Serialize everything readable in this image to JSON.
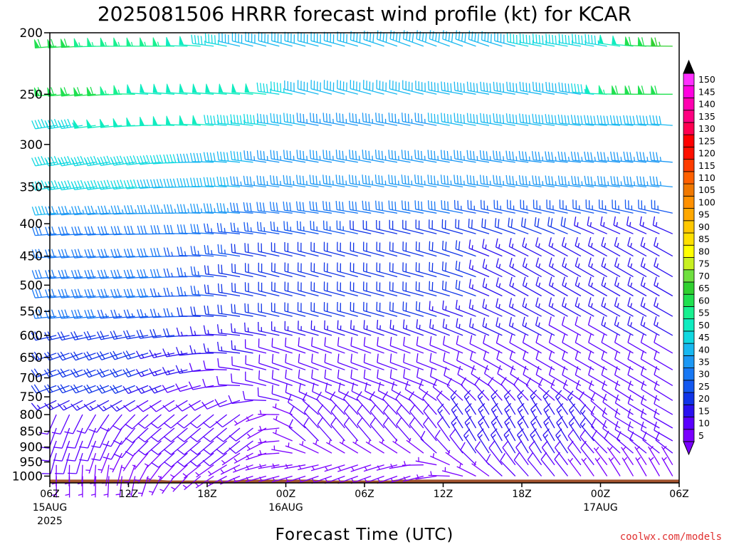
{
  "chart_data": {
    "type": "wind_barb_time_height",
    "title": "2025081506 HRRR forecast wind profile (kt) for KCAR",
    "xlabel": "Forecast Time (UTC)",
    "credit": "coolwx.com/models",
    "y_axis": {
      "label": "",
      "units": "hPa",
      "reversed": true,
      "ticks": [
        200,
        250,
        300,
        350,
        400,
        450,
        500,
        550,
        600,
        650,
        700,
        750,
        800,
        850,
        900,
        950,
        1000
      ]
    },
    "x_axis": {
      "hours_range": [
        0,
        48
      ],
      "ticks": [
        {
          "hour": 0,
          "label": "06Z",
          "date": "15AUG",
          "year": "2025"
        },
        {
          "hour": 6,
          "label": "12Z",
          "date": "",
          "year": ""
        },
        {
          "hour": 12,
          "label": "18Z",
          "date": "",
          "year": ""
        },
        {
          "hour": 18,
          "label": "00Z",
          "date": "16AUG",
          "year": ""
        },
        {
          "hour": 24,
          "label": "06Z",
          "date": "",
          "year": ""
        },
        {
          "hour": 30,
          "label": "12Z",
          "date": "",
          "year": ""
        },
        {
          "hour": 36,
          "label": "18Z",
          "date": "",
          "year": ""
        },
        {
          "hour": 42,
          "label": "00Z",
          "date": "17AUG",
          "year": ""
        },
        {
          "hour": 48,
          "label": "06Z",
          "date": "",
          "year": ""
        }
      ]
    },
    "colorbar": {
      "units": "kt",
      "levels": [
        5,
        10,
        15,
        20,
        25,
        30,
        35,
        40,
        45,
        50,
        55,
        60,
        65,
        70,
        75,
        80,
        85,
        90,
        95,
        100,
        105,
        110,
        115,
        120,
        125,
        130,
        135,
        140,
        145,
        150
      ],
      "colors": [
        "#7a00ff",
        "#5a00ff",
        "#2a10f0",
        "#1034e8",
        "#1458f0",
        "#1878f4",
        "#1c98f4",
        "#18b8f0",
        "#10d8e0",
        "#10ecc0",
        "#18f090",
        "#20e050",
        "#30d030",
        "#70e040",
        "#c8f020",
        "#ffff00",
        "#ffe000",
        "#ffc800",
        "#ffa800",
        "#ff9000",
        "#f07800",
        "#ff6000",
        "#ff3c00",
        "#ff1000",
        "#ff0000",
        "#ff0050",
        "#ff0080",
        "#ff00b0",
        "#ff00e0",
        "#ff30ff"
      ]
    },
    "surface_terrain": {
      "color": "#a0522d",
      "pressure_by_hour": [
        [
          0,
          1013
        ],
        [
          8,
          1013
        ],
        [
          9,
          1016
        ],
        [
          14,
          1016
        ],
        [
          15,
          1013
        ],
        [
          20,
          1013
        ],
        [
          21,
          1016
        ],
        [
          26,
          1016
        ],
        [
          26.5,
          1013
        ],
        [
          48,
          1013
        ]
      ]
    },
    "wind_key_points": [
      {
        "hour": 0,
        "p": 200,
        "speed": 60,
        "dir": 265
      },
      {
        "hour": 6,
        "p": 200,
        "speed": 55,
        "dir": 270
      },
      {
        "hour": 18,
        "p": 200,
        "speed": 40,
        "dir": 285
      },
      {
        "hour": 30,
        "p": 200,
        "speed": 40,
        "dir": 290
      },
      {
        "hour": 42,
        "p": 200,
        "speed": 45,
        "dir": 280
      },
      {
        "hour": 48,
        "p": 200,
        "speed": 65,
        "dir": 270
      },
      {
        "hour": 0,
        "p": 250,
        "speed": 60,
        "dir": 265
      },
      {
        "hour": 12,
        "p": 250,
        "speed": 50,
        "dir": 275
      },
      {
        "hour": 24,
        "p": 250,
        "speed": 40,
        "dir": 285
      },
      {
        "hour": 36,
        "p": 250,
        "speed": 40,
        "dir": 280
      },
      {
        "hour": 48,
        "p": 250,
        "speed": 60,
        "dir": 270
      },
      {
        "hour": 0,
        "p": 300,
        "speed": 45,
        "dir": 260
      },
      {
        "hour": 24,
        "p": 300,
        "speed": 35,
        "dir": 280
      },
      {
        "hour": 48,
        "p": 300,
        "speed": 35,
        "dir": 275
      },
      {
        "hour": 0,
        "p": 500,
        "speed": 30,
        "dir": 265
      },
      {
        "hour": 24,
        "p": 500,
        "speed": 20,
        "dir": 285
      },
      {
        "hour": 42,
        "p": 500,
        "speed": 15,
        "dir": 300
      },
      {
        "hour": 48,
        "p": 500,
        "speed": 15,
        "dir": 300
      },
      {
        "hour": 0,
        "p": 700,
        "speed": 20,
        "dir": 250
      },
      {
        "hour": 24,
        "p": 700,
        "speed": 12,
        "dir": 290
      },
      {
        "hour": 42,
        "p": 700,
        "speed": 10,
        "dir": 300
      },
      {
        "hour": 0,
        "p": 850,
        "speed": 10,
        "dir": 200
      },
      {
        "hour": 12,
        "p": 850,
        "speed": 8,
        "dir": 230
      },
      {
        "hour": 24,
        "p": 850,
        "speed": 10,
        "dir": 320
      },
      {
        "hour": 36,
        "p": 850,
        "speed": 15,
        "dir": 330
      },
      {
        "hour": 48,
        "p": 850,
        "speed": 12,
        "dir": 300
      },
      {
        "hour": 0,
        "p": 1000,
        "speed": 5,
        "dir": 180
      },
      {
        "hour": 24,
        "p": 1000,
        "speed": 5,
        "dir": 250
      },
      {
        "hour": 48,
        "p": 1000,
        "speed": 5,
        "dir": 330
      }
    ],
    "grid": false,
    "legend": "colorbar-right"
  }
}
